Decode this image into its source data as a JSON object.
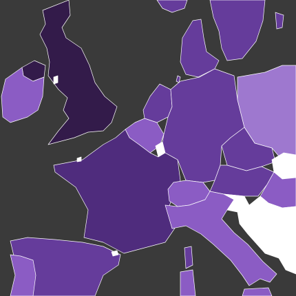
{
  "map": {
    "colors": {
      "sea": "#3a3a3a",
      "level_darkest": "#331b4a",
      "level_dark": "#4f2c7d",
      "level_mid": "#653c9b",
      "level_light": "#8b5cc4",
      "level_lightest": "#9e78cf",
      "no_data": "#ffffff"
    },
    "regions": [
      {
        "name": "united-kingdom",
        "level": "darkest"
      },
      {
        "name": "northern-ireland",
        "level": "darkest"
      },
      {
        "name": "ireland",
        "level": "light"
      },
      {
        "name": "france",
        "level": "dark"
      },
      {
        "name": "spain",
        "level": "mid"
      },
      {
        "name": "portugal",
        "level": "light"
      },
      {
        "name": "belgium",
        "level": "light"
      },
      {
        "name": "luxembourg",
        "level": "no_data"
      },
      {
        "name": "netherlands",
        "level": "mid"
      },
      {
        "name": "germany",
        "level": "mid"
      },
      {
        "name": "denmark",
        "level": "mid"
      },
      {
        "name": "norway-south",
        "level": "mid"
      },
      {
        "name": "sweden-south",
        "level": "mid"
      },
      {
        "name": "poland",
        "level": "lightest"
      },
      {
        "name": "czechia",
        "level": "mid"
      },
      {
        "name": "austria",
        "level": "mid"
      },
      {
        "name": "switzerland",
        "level": "light"
      },
      {
        "name": "italy",
        "level": "light"
      },
      {
        "name": "sardinia",
        "level": "light"
      },
      {
        "name": "corsica",
        "level": "mid"
      },
      {
        "name": "slovenia",
        "level": "no_data"
      },
      {
        "name": "croatia",
        "level": "no_data"
      },
      {
        "name": "bosnia",
        "level": "no_data"
      },
      {
        "name": "serbia",
        "level": "no_data"
      },
      {
        "name": "slovakia",
        "level": "no_data"
      },
      {
        "name": "hungary",
        "level": "light"
      },
      {
        "name": "isle-of-man",
        "level": "no_data"
      },
      {
        "name": "mallorca",
        "level": "no_data"
      }
    ]
  }
}
